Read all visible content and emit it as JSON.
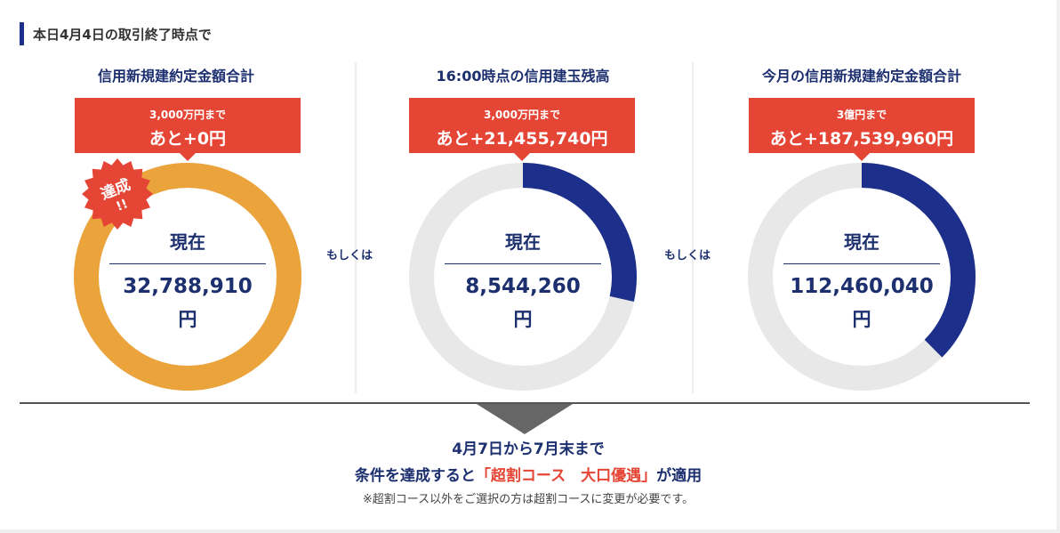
{
  "header": {
    "title": "本日4月4日の取引終了時点で"
  },
  "connector_label": "もしくは",
  "cards": [
    {
      "title": "信用新規建約定金額合計",
      "callout_line1": "3,000万円まで",
      "callout_line2": "あと+0円",
      "now_label": "現在",
      "amount": "32,788,910",
      "unit": "円",
      "progress": 1.0,
      "achieved": true,
      "badge_text1": "達成",
      "badge_text2": "!!"
    },
    {
      "title": "16:00時点の信用建玉残高",
      "callout_line1": "3,000万円まで",
      "callout_line2": "あと+21,455,740円",
      "now_label": "現在",
      "amount": "8,544,260",
      "unit": "円",
      "progress": 0.285,
      "achieved": false
    },
    {
      "title": "今月の信用新規建約定金額合計",
      "callout_line1": "3億円まで",
      "callout_line2": "あと+187,539,960円",
      "now_label": "現在",
      "amount": "112,460,040",
      "unit": "円",
      "progress": 0.375,
      "achieved": false
    }
  ],
  "bottom": {
    "line1": "4月7日から7月末まで",
    "line2_prefix": "条件を達成すると",
    "line2_highlight": "「超割コース　大口優遇」",
    "line2_suffix": "が適用",
    "note": "※超割コース以外をご選択の方は超割コースに変更が必要です。"
  },
  "colors": {
    "navy": "#1c2f8a",
    "red": "#e54535",
    "orange": "#eba43c",
    "ring_bg": "#e8e8e8"
  }
}
